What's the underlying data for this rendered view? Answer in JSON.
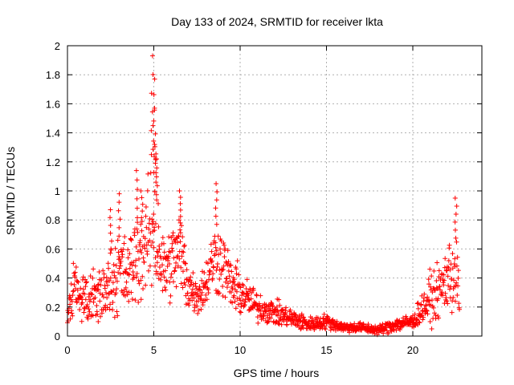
{
  "chart_data": {
    "type": "scatter",
    "title": "Day 133 of 2024, SRMTID for receiver lkta",
    "xlabel": "GPS time / hours",
    "ylabel": "SRMTID / TECUs",
    "xlim": [
      0,
      24
    ],
    "ylim": [
      0,
      2
    ],
    "xticks": [
      0,
      5,
      10,
      15,
      20
    ],
    "yticks": [
      0,
      0.2,
      0.4,
      0.6,
      0.8,
      1,
      1.2,
      1.4,
      1.6,
      1.8,
      2
    ],
    "xtick_labels": [
      "0",
      "5",
      "10",
      "15",
      "20"
    ],
    "ytick_labels": [
      "0",
      "0.2",
      "0.4",
      "0.6",
      "0.8",
      "1",
      "1.2",
      "1.4",
      "1.6",
      "1.8",
      "2"
    ],
    "grid": true,
    "marker": "+",
    "marker_color": "#ff0000",
    "series": [
      {
        "name": "SRMTID",
        "envelope_note": "Dense point cloud; envelope values (hours, TECU) used to draw it",
        "envelope": [
          {
            "x": 0.0,
            "y": 0.1,
            "spread": 0.05
          },
          {
            "x": 0.3,
            "y": 0.3,
            "spread": 0.12
          },
          {
            "x": 0.8,
            "y": 0.25,
            "spread": 0.1
          },
          {
            "x": 1.5,
            "y": 0.25,
            "spread": 0.12
          },
          {
            "x": 2.0,
            "y": 0.28,
            "spread": 0.12
          },
          {
            "x": 2.5,
            "y": 0.38,
            "spread": 0.15
          },
          {
            "x": 3.0,
            "y": 0.45,
            "spread": 0.18
          },
          {
            "x": 3.5,
            "y": 0.4,
            "spread": 0.15
          },
          {
            "x": 4.0,
            "y": 0.55,
            "spread": 0.2
          },
          {
            "x": 4.5,
            "y": 0.6,
            "spread": 0.2
          },
          {
            "x": 5.0,
            "y": 0.8,
            "spread": 0.3
          },
          {
            "x": 5.5,
            "y": 0.45,
            "spread": 0.15
          },
          {
            "x": 6.0,
            "y": 0.5,
            "spread": 0.15
          },
          {
            "x": 6.5,
            "y": 0.6,
            "spread": 0.18
          },
          {
            "x": 7.0,
            "y": 0.35,
            "spread": 0.12
          },
          {
            "x": 7.5,
            "y": 0.28,
            "spread": 0.08
          },
          {
            "x": 8.0,
            "y": 0.35,
            "spread": 0.1
          },
          {
            "x": 8.5,
            "y": 0.55,
            "spread": 0.15
          },
          {
            "x": 9.0,
            "y": 0.5,
            "spread": 0.15
          },
          {
            "x": 9.5,
            "y": 0.35,
            "spread": 0.1
          },
          {
            "x": 10.0,
            "y": 0.3,
            "spread": 0.1
          },
          {
            "x": 10.5,
            "y": 0.25,
            "spread": 0.08
          },
          {
            "x": 11.0,
            "y": 0.2,
            "spread": 0.06
          },
          {
            "x": 12.0,
            "y": 0.16,
            "spread": 0.05
          },
          {
            "x": 13.0,
            "y": 0.12,
            "spread": 0.04
          },
          {
            "x": 14.0,
            "y": 0.08,
            "spread": 0.03
          },
          {
            "x": 15.0,
            "y": 0.1,
            "spread": 0.03
          },
          {
            "x": 16.0,
            "y": 0.06,
            "spread": 0.02
          },
          {
            "x": 17.0,
            "y": 0.06,
            "spread": 0.02
          },
          {
            "x": 18.0,
            "y": 0.04,
            "spread": 0.02
          },
          {
            "x": 19.0,
            "y": 0.08,
            "spread": 0.03
          },
          {
            "x": 20.0,
            "y": 0.1,
            "spread": 0.03
          },
          {
            "x": 20.5,
            "y": 0.18,
            "spread": 0.06
          },
          {
            "x": 21.0,
            "y": 0.25,
            "spread": 0.1
          },
          {
            "x": 21.5,
            "y": 0.3,
            "spread": 0.1
          },
          {
            "x": 22.0,
            "y": 0.4,
            "spread": 0.15
          },
          {
            "x": 22.5,
            "y": 0.45,
            "spread": 0.18
          },
          {
            "x": 22.7,
            "y": 0.25,
            "spread": 0.1
          }
        ],
        "peaks": [
          {
            "x": 2.5,
            "y": 0.87
          },
          {
            "x": 3.0,
            "y": 0.98
          },
          {
            "x": 4.0,
            "y": 1.14
          },
          {
            "x": 4.3,
            "y": 1.0
          },
          {
            "x": 4.9,
            "y": 1.93
          },
          {
            "x": 5.0,
            "y": 1.77
          },
          {
            "x": 5.05,
            "y": 1.57
          },
          {
            "x": 5.1,
            "y": 1.32
          },
          {
            "x": 5.2,
            "y": 1.22
          },
          {
            "x": 6.5,
            "y": 1.0
          },
          {
            "x": 8.6,
            "y": 1.05
          },
          {
            "x": 22.5,
            "y": 0.95
          }
        ]
      }
    ]
  }
}
